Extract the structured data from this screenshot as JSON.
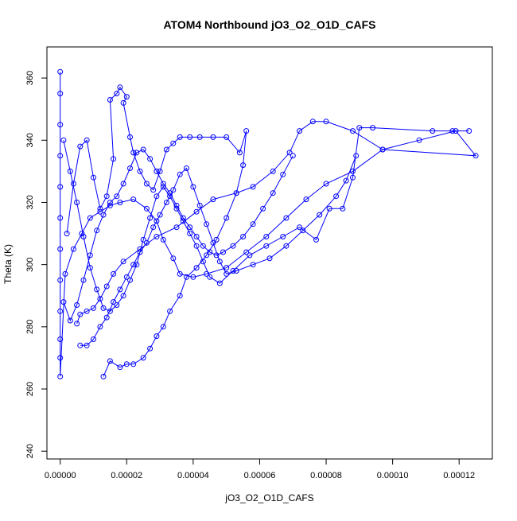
{
  "chart_data": {
    "type": "scatter",
    "title": "ATOM4 Northbound jO3_O2_O1D_CAFS",
    "xlabel": "jO3_O2_O1D_CAFS",
    "ylabel": "Theta (K)",
    "xlim": [
      -4e-06,
      0.00013
    ],
    "ylim": [
      237.5,
      370
    ],
    "x_ticks": [
      0,
      2e-05,
      4e-05,
      6e-05,
      8e-05,
      0.0001,
      0.00012
    ],
    "x_tick_labels": [
      "0.00000",
      "0.00002",
      "0.00004",
      "0.00006",
      "0.00008",
      "0.00010",
      "0.00012"
    ],
    "y_ticks": [
      240,
      260,
      280,
      300,
      320,
      340,
      360
    ],
    "y_tick_labels": [
      "240",
      "260",
      "280",
      "300",
      "320",
      "340",
      "360"
    ],
    "grid": false,
    "legend": "none",
    "color": "#0000ff",
    "marker": "open-circle",
    "line": true,
    "series": [
      {
        "points": [
          [
            0.0,
            362
          ],
          [
            0.0,
            355
          ],
          [
            0.0,
            345
          ],
          [
            0.0,
            335
          ],
          [
            0.0,
            325
          ],
          [
            0.0,
            315
          ],
          [
            0.0,
            305
          ],
          [
            0.0,
            295
          ],
          [
            0.0,
            285
          ],
          [
            0.0,
            276
          ],
          [
            0.0,
            270
          ],
          [
            0.0,
            264
          ],
          [
            1.5e-06,
            297
          ],
          [
            4e-06,
            305
          ],
          [
            6.5e-06,
            310
          ],
          [
            9e-06,
            315
          ],
          [
            1.2e-05,
            317
          ],
          [
            1.5e-05,
            319
          ],
          [
            1.8e-05,
            320
          ],
          [
            2.2e-05,
            321
          ],
          [
            2.6e-05,
            318
          ],
          [
            2.9e-05,
            314
          ],
          [
            3.1e-05,
            308
          ],
          [
            3.4e-05,
            302
          ],
          [
            3.6e-05,
            297
          ],
          [
            4e-05,
            296
          ],
          [
            4.4e-05,
            297
          ],
          [
            5e-05,
            299
          ],
          [
            5.6e-05,
            304
          ],
          [
            6.2e-05,
            309
          ],
          [
            6.8e-05,
            315
          ],
          [
            7.4e-05,
            321
          ],
          [
            8e-05,
            326
          ],
          [
            8.8e-05,
            330
          ],
          [
            9.7e-05,
            337
          ],
          [
            0.000108,
            340
          ],
          [
            0.000119,
            343
          ],
          [
            0.000125,
            335
          ],
          [
            9.7e-05,
            337
          ],
          [
            8.8e-05,
            343
          ],
          [
            8e-05,
            346
          ],
          [
            7.6e-05,
            346
          ],
          [
            7.2e-05,
            343
          ],
          [
            6.9e-05,
            336
          ],
          [
            6.4e-05,
            330
          ],
          [
            5.8e-05,
            325
          ],
          [
            5.3e-05,
            323
          ],
          [
            4.6e-05,
            321
          ],
          [
            4.1e-05,
            317
          ],
          [
            3.5e-05,
            312
          ],
          [
            2.9e-05,
            309
          ],
          [
            2.4e-05,
            305
          ],
          [
            1.9e-05,
            301
          ],
          [
            1.6e-05,
            297
          ],
          [
            1.4e-05,
            293
          ],
          [
            1.2e-05,
            289
          ],
          [
            1e-05,
            286
          ],
          [
            8e-06,
            285
          ],
          [
            6e-06,
            284
          ],
          [
            5e-06,
            281
          ]
        ]
      },
      {
        "points": [
          [
            2e-06,
            310
          ],
          [
            4e-06,
            326
          ],
          [
            6e-06,
            338
          ],
          [
            8e-06,
            340
          ],
          [
            1e-05,
            328
          ],
          [
            1.2e-05,
            318
          ],
          [
            1.4e-05,
            322
          ],
          [
            1.6e-05,
            334
          ],
          [
            1.5e-05,
            353
          ],
          [
            1.7e-05,
            355
          ],
          [
            1.8e-05,
            357
          ],
          [
            2e-05,
            354
          ],
          [
            1.9e-05,
            352
          ],
          [
            2.1e-05,
            341
          ],
          [
            2.2e-05,
            336
          ],
          [
            2.4e-05,
            330
          ],
          [
            2.6e-05,
            326
          ],
          [
            2.8e-05,
            324
          ],
          [
            3e-05,
            330
          ],
          [
            3.2e-05,
            337
          ],
          [
            3.4e-05,
            339
          ],
          [
            3.6e-05,
            341
          ],
          [
            3.9e-05,
            341
          ],
          [
            4.2e-05,
            341
          ],
          [
            4.6e-05,
            341
          ],
          [
            5e-05,
            341
          ],
          [
            5.4e-05,
            336
          ],
          [
            5.6e-05,
            343
          ],
          [
            5.5e-05,
            332
          ],
          [
            5.3e-05,
            323
          ],
          [
            5e-05,
            315
          ],
          [
            4.7e-05,
            308
          ],
          [
            4.4e-05,
            303
          ],
          [
            4.1e-05,
            299
          ],
          [
            3.8e-05,
            296
          ],
          [
            3.6e-05,
            290
          ],
          [
            3.3e-05,
            285
          ],
          [
            3.1e-05,
            280
          ],
          [
            2.9e-05,
            277
          ],
          [
            2.7e-05,
            273
          ],
          [
            2.5e-05,
            270
          ],
          [
            2.2e-05,
            268
          ],
          [
            2e-05,
            268
          ],
          [
            1.8e-05,
            267
          ],
          [
            1.5e-05,
            269
          ],
          [
            1.3e-05,
            264
          ]
        ]
      },
      {
        "points": [
          [
            1e-06,
            340
          ],
          [
            3e-06,
            330
          ],
          [
            5e-06,
            320
          ],
          [
            7e-06,
            309
          ],
          [
            9e-06,
            299
          ],
          [
            1.1e-05,
            292
          ],
          [
            1.3e-05,
            286
          ],
          [
            1.5e-05,
            285
          ],
          [
            1.7e-05,
            287
          ],
          [
            1.9e-05,
            290
          ],
          [
            2.1e-05,
            295
          ],
          [
            2.3e-05,
            300
          ],
          [
            2.5e-05,
            308
          ],
          [
            2.7e-05,
            315
          ],
          [
            2.9e-05,
            322
          ],
          [
            3.1e-05,
            325
          ],
          [
            3.3e-05,
            322
          ],
          [
            3.5e-05,
            318
          ],
          [
            3.7e-05,
            314
          ],
          [
            3.9e-05,
            310
          ],
          [
            4.1e-05,
            306
          ],
          [
            4.3e-05,
            301
          ],
          [
            4.5e-05,
            296
          ],
          [
            4.8e-05,
            294
          ],
          [
            5.2e-05,
            298
          ],
          [
            5.7e-05,
            303
          ],
          [
            6.2e-05,
            306
          ],
          [
            6.7e-05,
            309
          ],
          [
            7.2e-05,
            312
          ],
          [
            7.7e-05,
            308
          ],
          [
            8.1e-05,
            318
          ],
          [
            8.5e-05,
            318
          ],
          [
            8.8e-05,
            328
          ],
          [
            9e-05,
            344
          ],
          [
            9.4e-05,
            344
          ],
          [
            0.000112,
            343
          ],
          [
            0.000118,
            343
          ],
          [
            0.000123,
            343
          ]
        ]
      },
      {
        "points": [
          [
            6e-06,
            274
          ],
          [
            8e-06,
            274
          ],
          [
            1e-05,
            276
          ],
          [
            1.2e-05,
            280
          ],
          [
            1.4e-05,
            283
          ],
          [
            1.6e-05,
            288
          ],
          [
            1.8e-05,
            292
          ],
          [
            2e-05,
            296
          ],
          [
            2.2e-05,
            300
          ],
          [
            2.4e-05,
            304
          ],
          [
            2.6e-05,
            307
          ],
          [
            2.8e-05,
            312
          ],
          [
            3e-05,
            316
          ],
          [
            3.2e-05,
            320
          ],
          [
            3.4e-05,
            324
          ],
          [
            3.6e-05,
            329
          ],
          [
            3.8e-05,
            331
          ],
          [
            4e-05,
            325
          ],
          [
            4.2e-05,
            319
          ],
          [
            4.4e-05,
            313
          ],
          [
            4.6e-05,
            307
          ],
          [
            4.8e-05,
            301
          ],
          [
            5e-05,
            297
          ],
          [
            5.3e-05,
            298
          ],
          [
            5.8e-05,
            300
          ],
          [
            6.3e-05,
            302
          ],
          [
            6.8e-05,
            306
          ],
          [
            7.3e-05,
            311
          ],
          [
            7.8e-05,
            316
          ],
          [
            8.3e-05,
            322
          ],
          [
            8.6e-05,
            327
          ],
          [
            8.9e-05,
            335
          ]
        ]
      },
      {
        "points": [
          [
            1e-06,
            288
          ],
          [
            3e-06,
            282
          ],
          [
            5e-06,
            287
          ],
          [
            7e-06,
            295
          ],
          [
            9e-06,
            303
          ],
          [
            1.1e-05,
            311
          ],
          [
            1.3e-05,
            316
          ],
          [
            1.5e-05,
            320
          ],
          [
            1.7e-05,
            322
          ],
          [
            1.9e-05,
            326
          ],
          [
            2.1e-05,
            331
          ],
          [
            2.3e-05,
            336
          ],
          [
            2.5e-05,
            337
          ],
          [
            2.7e-05,
            334
          ],
          [
            2.9e-05,
            330
          ],
          [
            3.1e-05,
            326
          ],
          [
            3.3e-05,
            323
          ],
          [
            3.5e-05,
            319
          ],
          [
            3.7e-05,
            315
          ],
          [
            3.9e-05,
            312
          ],
          [
            4.1e-05,
            309
          ],
          [
            4.3e-05,
            306
          ],
          [
            4.5e-05,
            304
          ],
          [
            4.7e-05,
            303
          ],
          [
            4.9e-05,
            304
          ],
          [
            5.2e-05,
            306
          ],
          [
            5.5e-05,
            309
          ],
          [
            5.8e-05,
            313
          ],
          [
            6.1e-05,
            318
          ],
          [
            6.4e-05,
            323
          ],
          [
            6.7e-05,
            329
          ],
          [
            7e-05,
            335
          ]
        ]
      }
    ]
  }
}
